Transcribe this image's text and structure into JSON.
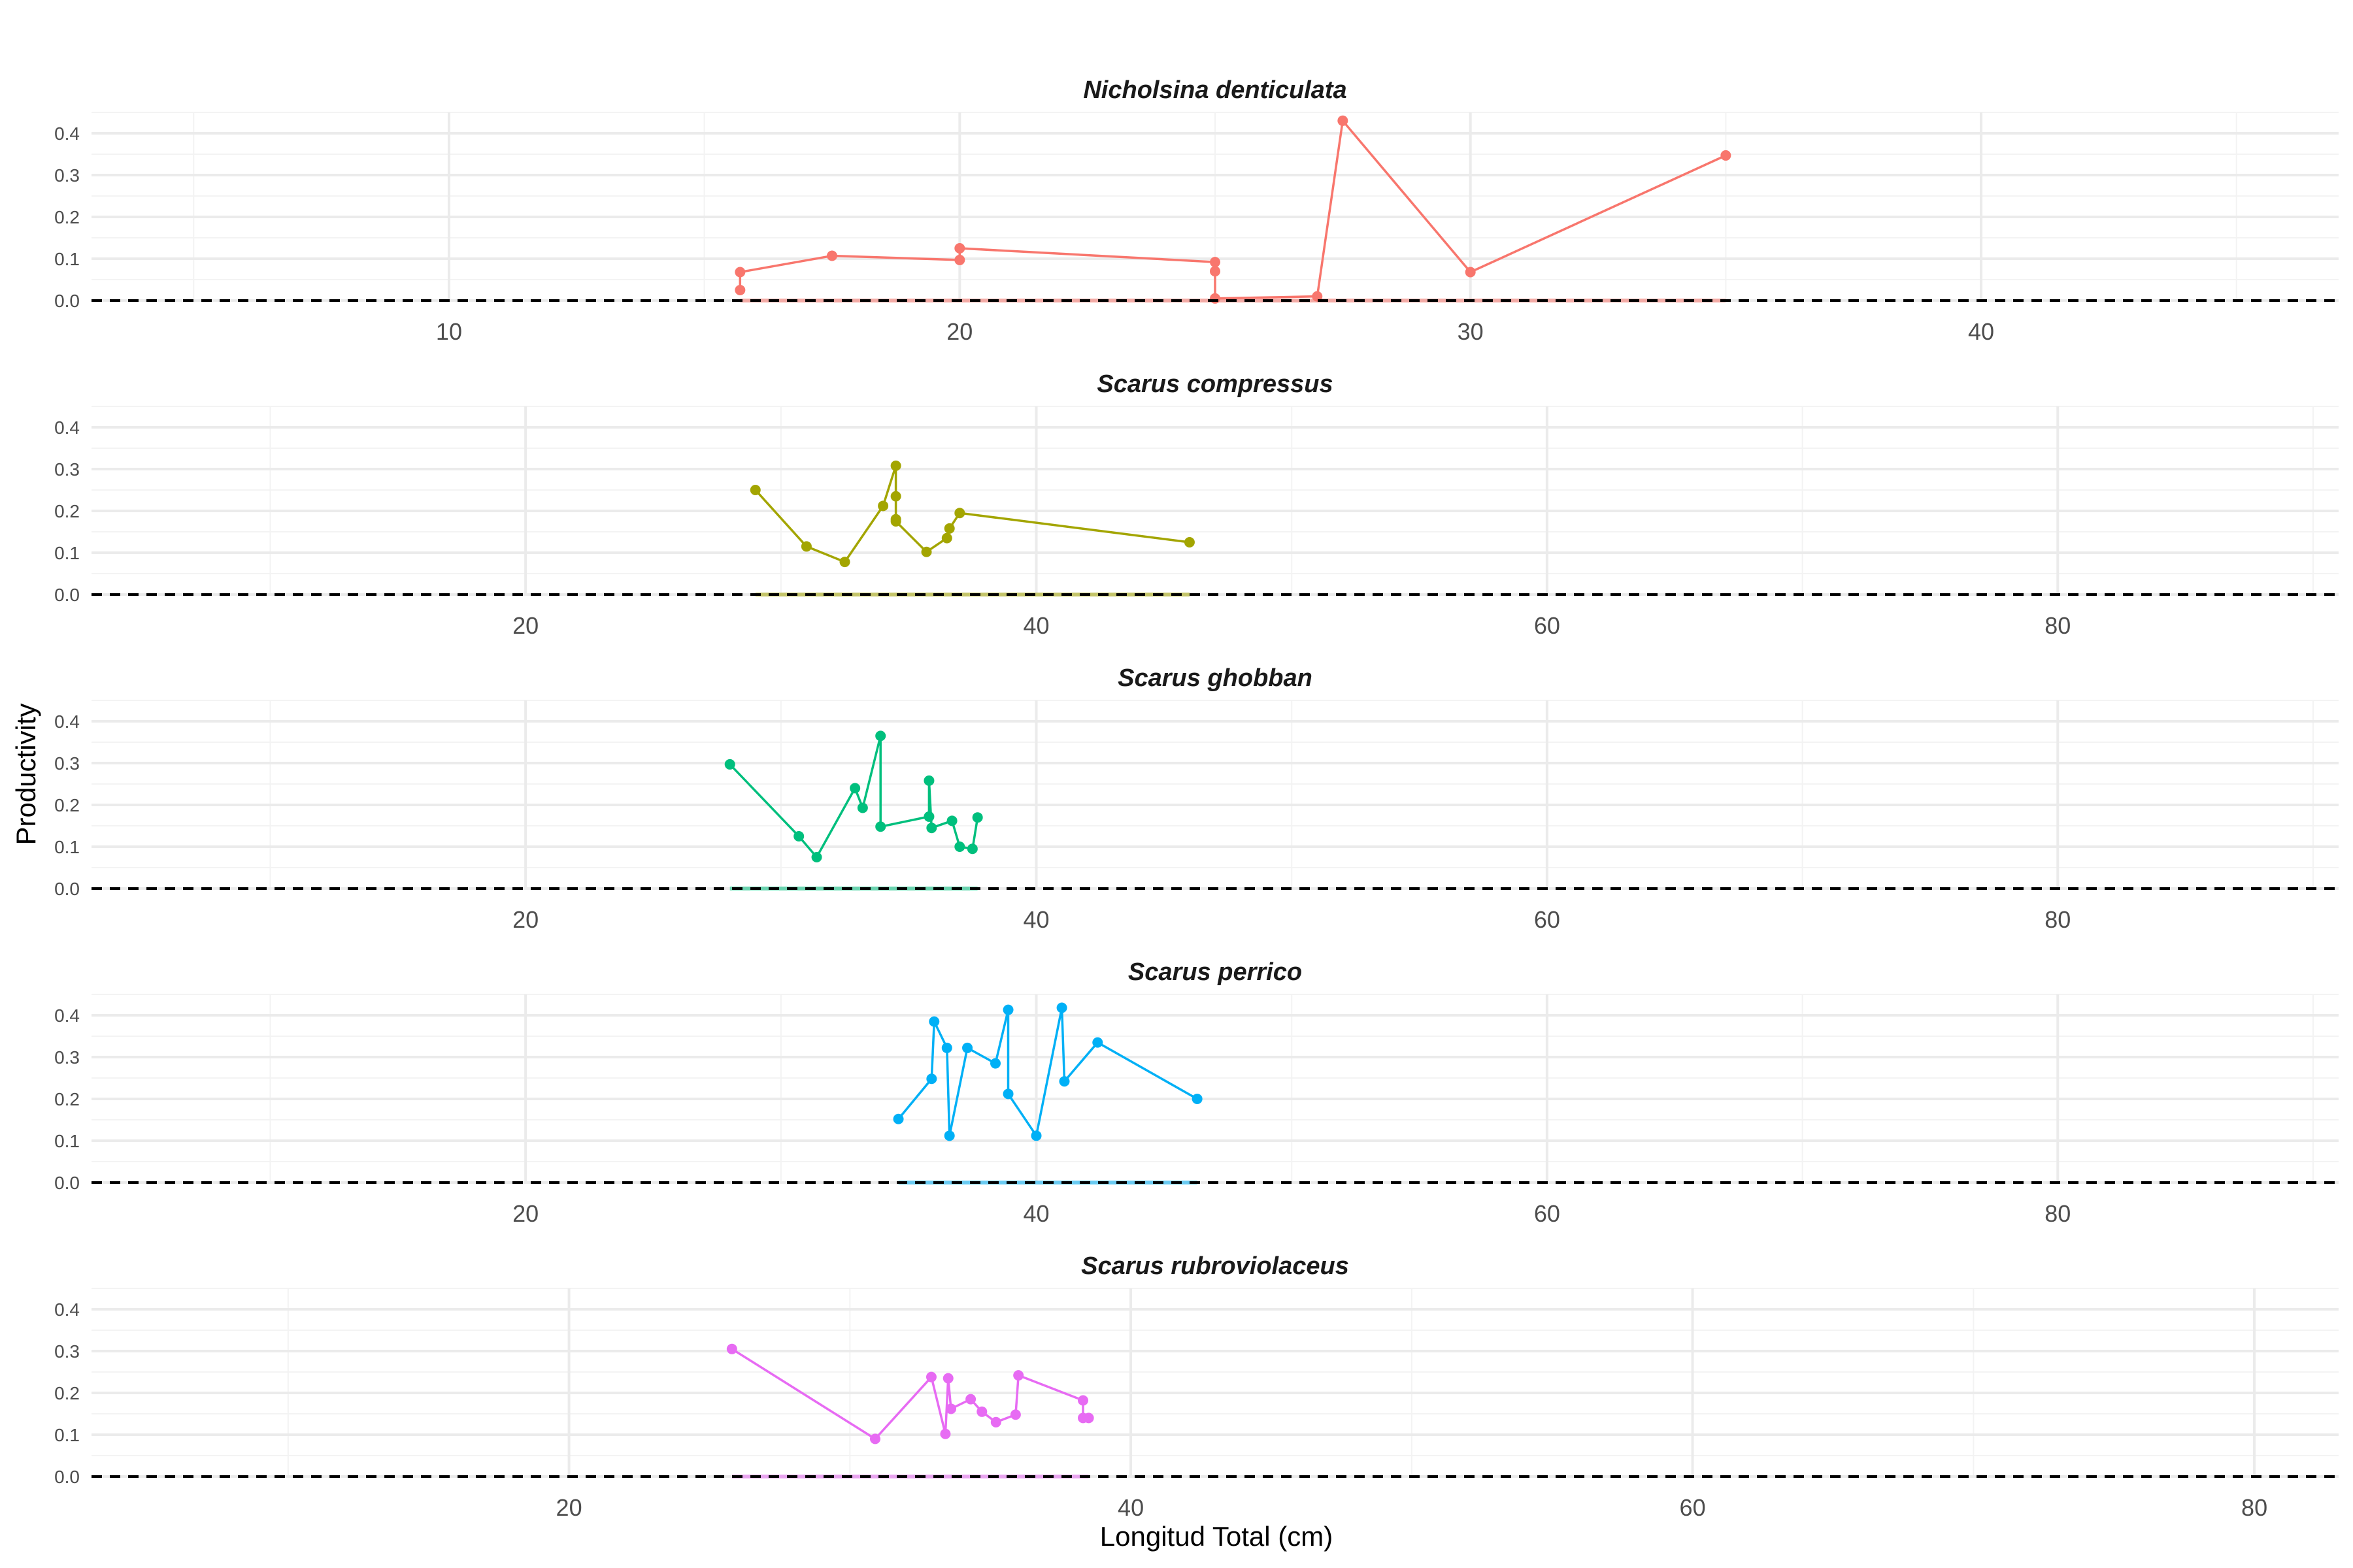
{
  "chart_data": {
    "type": "line",
    "xlabel": "Longitud Total (cm)",
    "ylabel": "Productivity",
    "ylim": [
      0,
      0.45
    ],
    "yticks": [
      "0.0",
      "0.1",
      "0.2",
      "0.3",
      "0.4"
    ],
    "grid": true,
    "reference_line": {
      "y": 0,
      "style": "dashed",
      "color": "#000000"
    },
    "facets": [
      {
        "title": "Nicholsina denticulata",
        "color": "#F8766D",
        "xlim": [
          3,
          47
        ],
        "xticks": [
          10,
          20,
          30,
          40
        ],
        "points": [
          [
            15.7,
            0.025
          ],
          [
            15.7,
            0.068
          ],
          [
            17.5,
            0.107
          ],
          [
            20.0,
            0.097
          ],
          [
            20.0,
            0.125
          ],
          [
            25.0,
            0.092
          ],
          [
            25.0,
            0.07
          ],
          [
            25.0,
            0.005
          ],
          [
            27.0,
            0.01
          ],
          [
            27.5,
            0.43
          ],
          [
            30.0,
            0.068
          ],
          [
            35.0,
            0.347
          ]
        ]
      },
      {
        "title": "Scarus compressus",
        "color": "#A3A500",
        "xlim": [
          3,
          91
        ],
        "xticks": [
          20,
          40,
          60,
          80
        ],
        "points": [
          [
            29.0,
            0.25
          ],
          [
            31.0,
            0.115
          ],
          [
            32.5,
            0.078
          ],
          [
            34.0,
            0.212
          ],
          [
            34.5,
            0.308
          ],
          [
            34.5,
            0.18
          ],
          [
            34.5,
            0.235
          ],
          [
            34.5,
            0.175
          ],
          [
            35.7,
            0.102
          ],
          [
            36.5,
            0.135
          ],
          [
            36.6,
            0.158
          ],
          [
            37.0,
            0.195
          ],
          [
            46.0,
            0.125
          ]
        ]
      },
      {
        "title": "Scarus ghobban",
        "color": "#00BF7D",
        "xlim": [
          3,
          91
        ],
        "xticks": [
          20,
          40,
          60,
          80
        ],
        "points": [
          [
            28.0,
            0.297
          ],
          [
            30.7,
            0.125
          ],
          [
            31.4,
            0.075
          ],
          [
            32.9,
            0.24
          ],
          [
            33.2,
            0.193
          ],
          [
            33.9,
            0.365
          ],
          [
            33.9,
            0.148
          ],
          [
            35.8,
            0.172
          ],
          [
            35.8,
            0.258
          ],
          [
            35.9,
            0.145
          ],
          [
            36.7,
            0.162
          ],
          [
            37.0,
            0.1
          ],
          [
            37.5,
            0.095
          ],
          [
            37.7,
            0.17
          ]
        ]
      },
      {
        "title": "Scarus perrico",
        "color": "#00B0F6",
        "xlim": [
          3,
          91
        ],
        "xticks": [
          20,
          40,
          60,
          80
        ],
        "points": [
          [
            34.6,
            0.152
          ],
          [
            35.9,
            0.248
          ],
          [
            36.0,
            0.385
          ],
          [
            36.5,
            0.322
          ],
          [
            36.6,
            0.112
          ],
          [
            37.3,
            0.322
          ],
          [
            38.4,
            0.285
          ],
          [
            38.9,
            0.413
          ],
          [
            38.9,
            0.212
          ],
          [
            40.0,
            0.112
          ],
          [
            41.0,
            0.418
          ],
          [
            41.1,
            0.242
          ],
          [
            42.4,
            0.335
          ],
          [
            46.3,
            0.2
          ]
        ]
      },
      {
        "title": "Scarus rubroviolaceus",
        "color": "#E76BF3",
        "xlim": [
          3,
          83
        ],
        "xticks": [
          20,
          40,
          60,
          80
        ],
        "points": [
          [
            25.8,
            0.305
          ],
          [
            30.9,
            0.09
          ],
          [
            32.9,
            0.238
          ],
          [
            33.4,
            0.102
          ],
          [
            33.5,
            0.235
          ],
          [
            33.6,
            0.162
          ],
          [
            34.3,
            0.185
          ],
          [
            34.7,
            0.155
          ],
          [
            35.2,
            0.13
          ],
          [
            35.9,
            0.148
          ],
          [
            36.0,
            0.242
          ],
          [
            38.3,
            0.182
          ],
          [
            38.3,
            0.14
          ],
          [
            38.5,
            0.14
          ]
        ]
      }
    ]
  }
}
